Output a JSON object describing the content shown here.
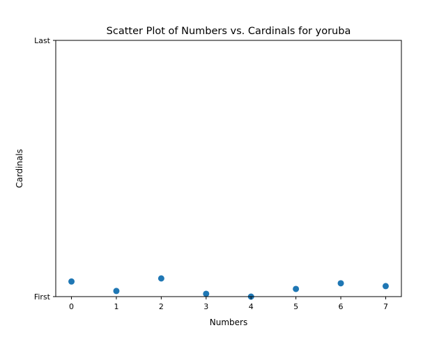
{
  "chart_data": {
    "type": "scatter",
    "title": "Scatter Plot of Numbers vs. Cardinals for yoruba",
    "xlabel": "Numbers",
    "ylabel": "Cardinals",
    "x_ticks": [
      "0",
      "1",
      "2",
      "3",
      "4",
      "5",
      "6",
      "7"
    ],
    "y_tick_labels": [
      "First",
      "Last"
    ],
    "xlim": [
      -0.35,
      7.35
    ],
    "ylim": [
      0,
      1
    ],
    "grid": false,
    "legend": "none",
    "series": [
      {
        "color": "#1f77b4",
        "points": [
          {
            "x": 0,
            "y": 0.059
          },
          {
            "x": 1,
            "y": 0.022
          },
          {
            "x": 2,
            "y": 0.071
          },
          {
            "x": 3,
            "y": 0.011
          },
          {
            "x": 4,
            "y": 0.0
          },
          {
            "x": 5,
            "y": 0.03
          },
          {
            "x": 6,
            "y": 0.052
          },
          {
            "x": 7,
            "y": 0.041
          }
        ]
      }
    ]
  }
}
